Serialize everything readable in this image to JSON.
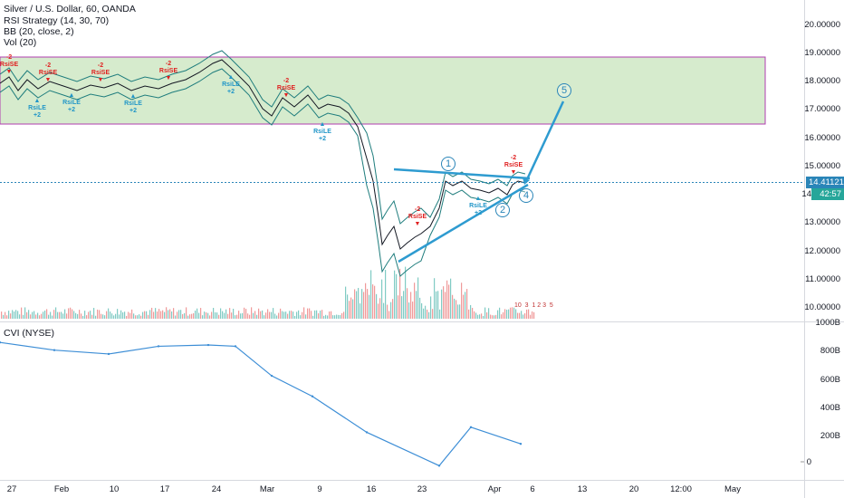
{
  "legend": {
    "symbol": "Silver / U.S. Dollar, 60, OANDA",
    "strategy": "RSI Strategy (14, 30, 70)",
    "bb": "BB (20, close, 2)",
    "vol": "Vol (20)",
    "cvi": "CVI (NYSE)"
  },
  "price_axis": [
    "20.00000",
    "19.00000",
    "18.00000",
    "17.00000",
    "16.00000",
    "15.00000",
    "14",
    "13.00000",
    "12.00000",
    "11.00000",
    "10.00000"
  ],
  "price_badge": {
    "value": "14.41121",
    "time": "42:57",
    "time_prefix": "14"
  },
  "cvi_axis": [
    "1000B",
    "800B",
    "600B",
    "400B",
    "200B",
    "0"
  ],
  "time_axis": [
    "27",
    "Feb",
    "10",
    "17",
    "24",
    "Mar",
    "9",
    "16",
    "23",
    "Apr",
    "6",
    "13",
    "20",
    "12:00",
    "May"
  ],
  "signals": {
    "short_label": "RsiSE",
    "short_qty": "-2",
    "long_label": "RsiLE",
    "long_qty": "+2"
  },
  "waves": [
    "1",
    "2",
    "4",
    "5"
  ],
  "events_marker": "10  3  1 2 3  5",
  "colors": {
    "zone_fill": "#cfe8c4",
    "zone_border": "#b03cb0",
    "bb": "#1f7d7d",
    "price": "#131722",
    "wave": "#2e9bd0",
    "cvi": "#3d8ed6",
    "badge": "#26a69a",
    "badge_price": "#2a85b8"
  },
  "chart_data": {
    "type": "line",
    "series": [
      {
        "name": "CVI (NYSE)",
        "x": [
          "Jan 20",
          "Jan 27",
          "Feb 3",
          "Feb 10",
          "Feb 17",
          "Feb 24",
          "Mar 2",
          "Mar 9",
          "Mar 16",
          "Mar 23",
          "Mar 30",
          "Apr 6"
        ],
        "values": [
          900,
          840,
          810,
          870,
          880,
          870,
          640,
          480,
          200,
          -60,
          240,
          110
        ]
      }
    ],
    "ylim": [
      -100,
      1000
    ]
  }
}
